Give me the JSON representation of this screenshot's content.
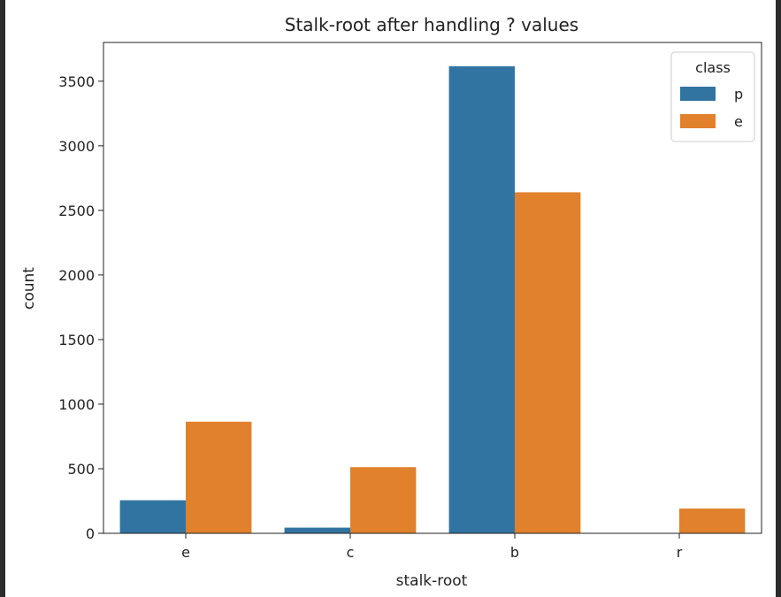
{
  "chart_data": {
    "type": "bar",
    "title": "Stalk-root after handling ? values",
    "xlabel": "stalk-root",
    "ylabel": "count",
    "categories": [
      "e",
      "c",
      "b",
      "r"
    ],
    "series": [
      {
        "name": "p",
        "values": [
          256,
          44,
          3616,
          0
        ],
        "color": "#3274a1"
      },
      {
        "name": "e",
        "values": [
          864,
          512,
          2640,
          192
        ],
        "color": "#e1812c"
      }
    ],
    "ylim": [
      0,
      3800
    ],
    "yticks": [
      0,
      500,
      1000,
      1500,
      2000,
      2500,
      3000,
      3500
    ],
    "grid": false,
    "legend": {
      "title": "class",
      "placement": "top-right"
    }
  }
}
